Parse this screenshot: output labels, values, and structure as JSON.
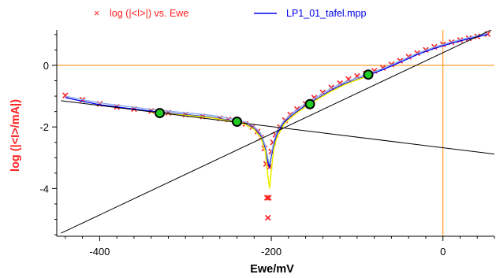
{
  "chart_data": {
    "type": "scatter",
    "xlabel": "Ewe/mV",
    "ylabel": "log (|<I>/mA|)",
    "xlim": [
      -450,
      60
    ],
    "ylim": [
      -5.55,
      1.15
    ],
    "x_ticks": [
      -400,
      -200,
      0
    ],
    "y_ticks": [
      0,
      -2,
      -4
    ],
    "grid": false,
    "legend_position": "top",
    "legend": [
      {
        "marker": "×",
        "label": "log (|<I>|) vs. Ewe",
        "color": "#ff2020"
      },
      {
        "marker": "line",
        "label": "LP1_01_tafel.mpp",
        "color": "#0000ee"
      }
    ],
    "series": [
      {
        "name": "log (|<I>|) vs. Ewe",
        "kind": "scatter",
        "color": "#ff2020",
        "x": [
          -440,
          -420,
          -400,
          -380,
          -360,
          -340,
          -320,
          -300,
          -280,
          -260,
          -250,
          -240,
          -230,
          -222,
          -216,
          -212,
          -208,
          -206,
          -205,
          -204,
          -203,
          -202,
          -200,
          -198,
          -195,
          -190,
          -184,
          -178,
          -170,
          -160,
          -150,
          -140,
          -130,
          -120,
          -110,
          -100,
          -90,
          -80,
          -70,
          -60,
          -50,
          -40,
          -30,
          -20,
          -10,
          0,
          10,
          20,
          30,
          40,
          52
        ],
        "y": [
          -0.98,
          -1.12,
          -1.25,
          -1.35,
          -1.42,
          -1.48,
          -1.54,
          -1.6,
          -1.66,
          -1.72,
          -1.76,
          -1.82,
          -1.9,
          -2.0,
          -2.15,
          -2.35,
          -2.7,
          -3.2,
          -4.3,
          -4.95,
          -4.3,
          -3.3,
          -2.8,
          -2.5,
          -2.25,
          -2.0,
          -1.78,
          -1.6,
          -1.42,
          -1.25,
          -1.05,
          -0.88,
          -0.72,
          -0.58,
          -0.45,
          -0.35,
          -0.27,
          -0.18,
          -0.08,
          0.03,
          0.15,
          0.28,
          0.4,
          0.5,
          0.6,
          0.68,
          0.75,
          0.82,
          0.88,
          0.94,
          1.02
        ]
      },
      {
        "name": "LP1_01_tafel.mpp",
        "kind": "line",
        "color": "#0000ee",
        "x": [
          -440,
          -400,
          -360,
          -330,
          -300,
          -270,
          -245,
          -230,
          -220,
          -212,
          -207,
          -204,
          -202,
          -200,
          -197,
          -193,
          -185,
          -175,
          -160,
          -145,
          -130,
          -115,
          -100,
          -85,
          -70,
          -50,
          -30,
          -10,
          10,
          30,
          52
        ],
        "y": [
          -1.05,
          -1.28,
          -1.42,
          -1.52,
          -1.6,
          -1.68,
          -1.8,
          -1.9,
          -2.05,
          -2.3,
          -2.7,
          -3.15,
          -3.3,
          -2.95,
          -2.55,
          -2.2,
          -1.85,
          -1.6,
          -1.3,
          -1.05,
          -0.8,
          -0.6,
          -0.45,
          -0.3,
          -0.14,
          0.1,
          0.35,
          0.55,
          0.72,
          0.86,
          1.0
        ]
      },
      {
        "name": "",
        "kind": "line",
        "color": "#88aaee",
        "x": [
          -440,
          -400,
          -360,
          -330,
          -300,
          -270,
          -245,
          -230,
          -220,
          -212,
          -207,
          -204,
          -202,
          -200,
          -197,
          -193,
          -185,
          -175,
          -160,
          -145,
          -130,
          -115,
          -100,
          -85,
          -70,
          -50,
          -30,
          -10,
          10,
          30,
          52
        ],
        "y": [
          -1.0,
          -1.22,
          -1.36,
          -1.46,
          -1.54,
          -1.62,
          -1.74,
          -1.84,
          -1.98,
          -2.22,
          -2.6,
          -3.02,
          -3.2,
          -2.85,
          -2.46,
          -2.12,
          -1.79,
          -1.54,
          -1.24,
          -0.99,
          -0.74,
          -0.55,
          -0.4,
          -0.25,
          -0.1,
          0.14,
          0.39,
          0.59,
          0.76,
          0.9,
          1.04
        ]
      },
      {
        "name": "",
        "kind": "line",
        "color": "#eeee00",
        "x": [
          -340,
          -300,
          -270,
          -245,
          -230,
          -220,
          -212,
          -207,
          -204,
          -202,
          -200,
          -197,
          -193,
          -185,
          -175,
          -160,
          -145,
          -130,
          -115,
          -100,
          -88
        ],
        "y": [
          -1.52,
          -1.62,
          -1.7,
          -1.82,
          -1.92,
          -2.08,
          -2.35,
          -2.8,
          -3.6,
          -4.0,
          -3.4,
          -2.7,
          -2.3,
          -1.9,
          -1.64,
          -1.34,
          -1.08,
          -0.84,
          -0.63,
          -0.47,
          -0.36
        ]
      },
      {
        "name": "",
        "kind": "line",
        "color": "#000000",
        "x": [
          -445,
          60
        ],
        "y": [
          -5.45,
          1.2
        ]
      },
      {
        "name": "",
        "kind": "line",
        "color": "#000000",
        "x": [
          -445,
          60
        ],
        "y": [
          -1.15,
          -2.88
        ]
      }
    ],
    "highlight_points": {
      "color": "#22cc22",
      "x": [
        -330,
        -240,
        -155,
        -87
      ],
      "y": [
        -1.55,
        -1.83,
        -1.26,
        -0.3
      ]
    },
    "reference_lines": {
      "color": "#ff8800",
      "x": [
        0
      ],
      "y": [
        0
      ]
    }
  }
}
